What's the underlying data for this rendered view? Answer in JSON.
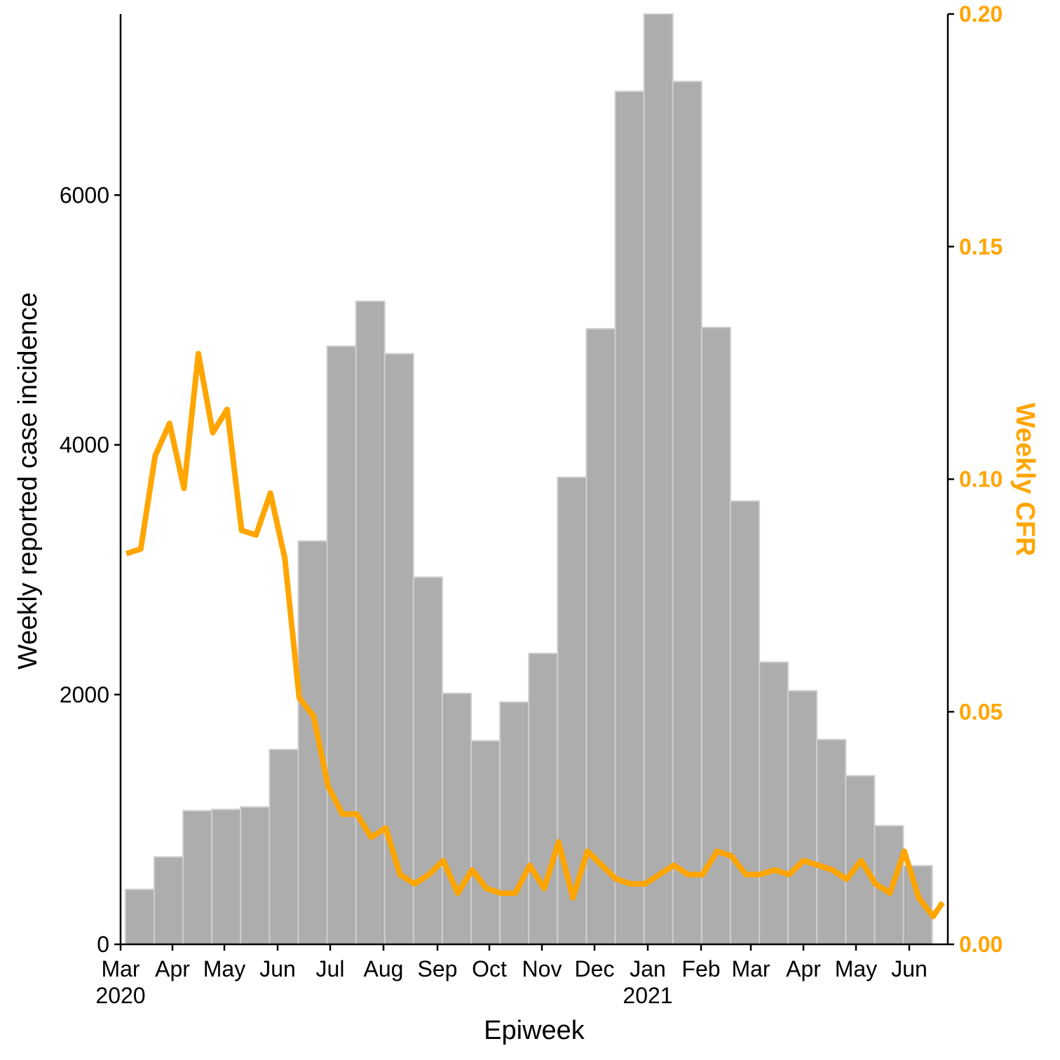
{
  "chart_data": {
    "type": "bar",
    "title": "",
    "xlabel": "Epiweek",
    "ylabel_left": "Weekly reported case incidence",
    "ylabel_right": "Weekly CFR",
    "ylim_left": [
      0,
      7450
    ],
    "ylim_right": [
      0,
      0.2
    ],
    "yticks_left": [
      0,
      2000,
      4000,
      6000
    ],
    "yticks_right": [
      "0.00",
      "0.05",
      "0.10",
      "0.15",
      "0.20"
    ],
    "x_tick_labels": [
      "Mar",
      "Apr",
      "May",
      "Jun",
      "Jul",
      "Aug",
      "Sep",
      "Oct",
      "Nov",
      "Dec",
      "Jan",
      "Feb",
      "Mar",
      "Apr",
      "May",
      "Jun"
    ],
    "x_year_labels": [
      "2020",
      "2021"
    ],
    "bars": {
      "name": "Weekly reported case incidence",
      "color": "#adadad",
      "edge_color": "#cfcfcf",
      "x_start_weeks": [
        1,
        7,
        13,
        19,
        25,
        31,
        37,
        43,
        49,
        55,
        61,
        67,
        73,
        79,
        85,
        91,
        97,
        103,
        109,
        115,
        121,
        127,
        133,
        139,
        145,
        151,
        157,
        163
      ],
      "values": [
        440,
        700,
        1070,
        1080,
        1100,
        1560,
        3230,
        4790,
        5150,
        4730,
        2940,
        2010,
        1630,
        1940,
        2330,
        3740,
        4930,
        6830,
        7450,
        6910,
        4940,
        3550,
        2260,
        2030,
        1640,
        1350,
        950,
        630
      ]
    },
    "line": {
      "name": "Weekly CFR",
      "color": "#ffa500",
      "x_weeks": [
        0,
        3,
        6,
        9,
        12,
        15,
        18,
        21,
        24,
        27,
        30,
        33,
        36,
        39,
        42,
        45,
        48,
        51,
        54,
        57,
        60,
        63,
        66,
        69,
        72,
        75,
        78,
        81,
        84,
        87,
        90,
        93,
        96,
        99,
        102,
        105,
        108,
        111,
        114,
        117,
        120,
        123,
        126,
        129,
        132,
        135,
        138,
        141,
        144,
        147,
        150,
        153,
        156,
        159,
        162,
        165,
        168,
        170
      ],
      "values": [
        0.084,
        0.085,
        0.105,
        0.112,
        0.098,
        0.127,
        0.11,
        0.115,
        0.089,
        0.088,
        0.097,
        0.083,
        0.053,
        0.049,
        0.034,
        0.028,
        0.028,
        0.023,
        0.025,
        0.015,
        0.013,
        0.015,
        0.018,
        0.011,
        0.016,
        0.012,
        0.011,
        0.011,
        0.017,
        0.012,
        0.022,
        0.01,
        0.02,
        0.017,
        0.014,
        0.013,
        0.013,
        0.015,
        0.017,
        0.015,
        0.015,
        0.02,
        0.019,
        0.015,
        0.015,
        0.016,
        0.015,
        0.018,
        0.017,
        0.016,
        0.014,
        0.018,
        0.013,
        0.011,
        0.02,
        0.01,
        0.006,
        0.009
      ]
    }
  },
  "colors": {
    "bar_fill": "#adadad",
    "bar_edge": "#cfcfcf",
    "cfr_line": "#ffa500",
    "axis_left": "#000000",
    "axis_right": "#000000",
    "right_text": "#ffa500"
  }
}
